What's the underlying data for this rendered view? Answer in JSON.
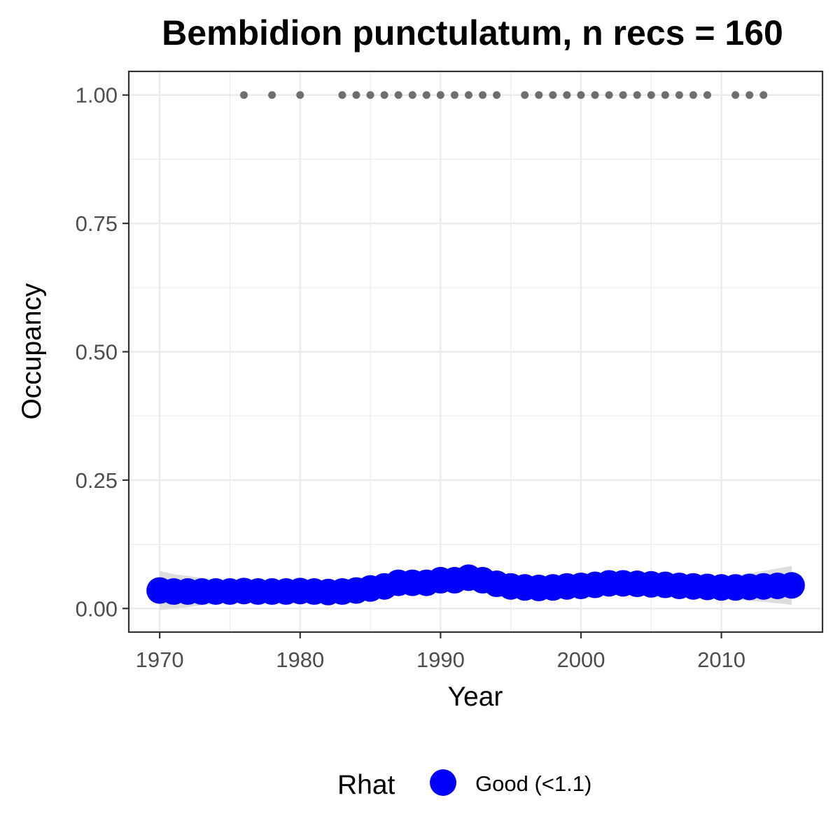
{
  "chart_data": {
    "type": "scatter",
    "title": "Bembidion punctulatum, n recs = 160",
    "xlabel": "Year",
    "ylabel": "Occupancy",
    "xlim": [
      1967.8,
      2017.2
    ],
    "ylim": [
      -0.046,
      1.046
    ],
    "x_ticks": [
      1970,
      1980,
      1990,
      2000,
      2010
    ],
    "x_tick_labels": [
      "1970",
      "1980",
      "1990",
      "2000",
      "2010"
    ],
    "y_ticks": [
      0.0,
      0.25,
      0.5,
      0.75,
      1.0
    ],
    "y_tick_labels": [
      "0.00",
      "0.25",
      "0.50",
      "0.75",
      "1.00"
    ],
    "grid": true,
    "legend": {
      "title": "Rhat",
      "position": "bottom",
      "entries": [
        {
          "label": "Good (<1.1)",
          "color": "#0000ff"
        }
      ]
    },
    "colors": {
      "occupancy": "#0000ff",
      "records": "#6e6e6e",
      "ribbon": "#d9d9d9"
    },
    "series": [
      {
        "name": "Good (<1.1)",
        "x": [
          1970,
          1971,
          1972,
          1973,
          1974,
          1975,
          1976,
          1977,
          1978,
          1979,
          1980,
          1981,
          1982,
          1983,
          1984,
          1985,
          1986,
          1987,
          1988,
          1989,
          1990,
          1991,
          1992,
          1993,
          1994,
          1995,
          1996,
          1997,
          1998,
          1999,
          2000,
          2001,
          2002,
          2003,
          2004,
          2005,
          2006,
          2007,
          2008,
          2009,
          2010,
          2011,
          2012,
          2013,
          2014,
          2015
        ],
        "y": [
          0.035,
          0.033,
          0.033,
          0.033,
          0.033,
          0.033,
          0.034,
          0.033,
          0.033,
          0.033,
          0.034,
          0.033,
          0.032,
          0.033,
          0.035,
          0.039,
          0.043,
          0.05,
          0.05,
          0.05,
          0.055,
          0.055,
          0.06,
          0.055,
          0.048,
          0.043,
          0.041,
          0.04,
          0.041,
          0.043,
          0.044,
          0.046,
          0.049,
          0.049,
          0.048,
          0.047,
          0.046,
          0.044,
          0.043,
          0.042,
          0.041,
          0.041,
          0.042,
          0.043,
          0.044,
          0.045
        ]
      },
      {
        "name": "",
        "x": [
          1976,
          1978,
          1980,
          1983,
          1984,
          1985,
          1986,
          1987,
          1988,
          1989,
          1990,
          1991,
          1992,
          1993,
          1994,
          1996,
          1997,
          1998,
          1999,
          2000,
          2001,
          2002,
          2003,
          2004,
          2005,
          2006,
          2007,
          2008,
          2009,
          2011,
          2012,
          2013
        ],
        "y": [
          1,
          1,
          1,
          1,
          1,
          1,
          1,
          1,
          1,
          1,
          1,
          1,
          1,
          1,
          1,
          1,
          1,
          1,
          1,
          1,
          1,
          1,
          1,
          1,
          1,
          1,
          1,
          1,
          1,
          1,
          1,
          1
        ]
      }
    ]
  }
}
